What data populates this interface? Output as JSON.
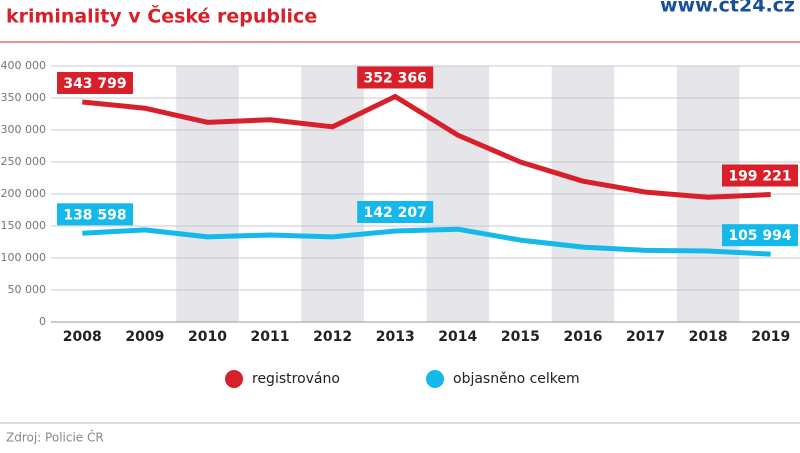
{
  "header": {
    "title": "kriminality v České republice",
    "site": "www.ct24.cz"
  },
  "chart_data": {
    "type": "line",
    "categories": [
      "2008",
      "2009",
      "2010",
      "2011",
      "2012",
      "2013",
      "2014",
      "2015",
      "2016",
      "2017",
      "2018",
      "2019"
    ],
    "series": [
      {
        "name": "registrováno",
        "color": "#d8202a",
        "values": [
          343799,
          334000,
          312000,
          316000,
          305000,
          352366,
          292000,
          250000,
          220000,
          203000,
          195000,
          199221
        ],
        "value_labels": [
          "343 799",
          null,
          null,
          null,
          null,
          "352 366",
          null,
          null,
          null,
          null,
          null,
          "199 221"
        ]
      },
      {
        "name": "objasněno celkem",
        "color": "#15b8ea",
        "values": [
          138598,
          144000,
          133000,
          136000,
          133000,
          142207,
          145000,
          128000,
          117000,
          112000,
          111000,
          105994
        ],
        "value_labels": [
          "138 598",
          null,
          null,
          null,
          null,
          "142 207",
          null,
          null,
          null,
          null,
          null,
          "105 994"
        ]
      }
    ],
    "ylim": [
      0,
      400000
    ],
    "yticks": [
      {
        "value": 0,
        "label": "0"
      },
      {
        "value": 50000,
        "label": "50 000"
      },
      {
        "value": 100000,
        "label": "100 000"
      },
      {
        "value": 150000,
        "label": "150 000"
      },
      {
        "value": 200000,
        "label": "200 000"
      },
      {
        "value": 250000,
        "label": "250 000"
      },
      {
        "value": 300000,
        "label": "300 000"
      },
      {
        "value": 350000,
        "label": "350 000"
      },
      {
        "value": 400000,
        "label": "400 000"
      }
    ],
    "grid": true,
    "legend": "bottom"
  },
  "footer": {
    "source": "Zdroj: Policie ČR"
  }
}
